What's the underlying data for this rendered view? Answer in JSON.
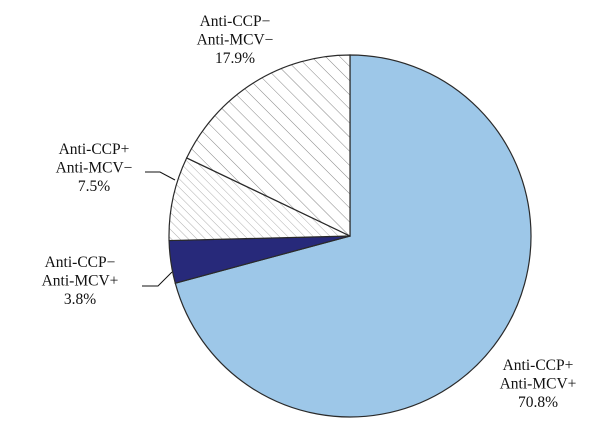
{
  "chart_data": {
    "type": "pie",
    "slices": [
      {
        "label_lines": [
          "Anti-CCP+",
          "Anti-MCV+"
        ],
        "value_label": "70.8%",
        "value": 70.8,
        "color": "#9dc7e8",
        "pattern": "solid"
      },
      {
        "label_lines": [
          "Anti-CCP−",
          "Anti-MCV+"
        ],
        "value_label": "3.8%",
        "value": 3.8,
        "color": "#27297a",
        "pattern": "solid"
      },
      {
        "label_lines": [
          "Anti-CCP+",
          "Anti-MCV−"
        ],
        "value_label": "7.5%",
        "value": 7.5,
        "color": "#ffffff",
        "pattern": "dense-hatch"
      },
      {
        "label_lines": [
          "Anti-CCP−",
          "Anti-MCV−"
        ],
        "value_label": "17.9%",
        "value": 17.9,
        "color": "#ffffff",
        "pattern": "hatch"
      }
    ],
    "start_angle": "12 o'clock",
    "direction": "clockwise",
    "legend": "none"
  }
}
